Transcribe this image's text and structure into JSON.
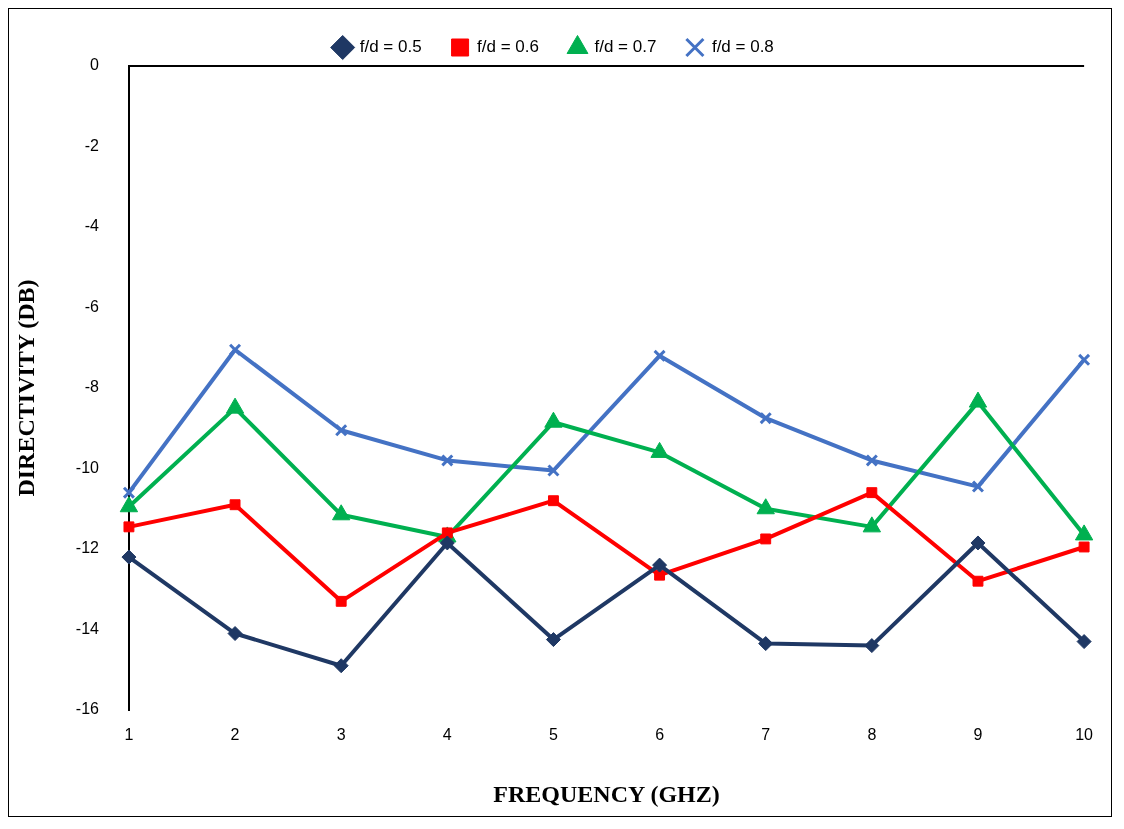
{
  "chart_data": {
    "type": "line",
    "xlabel": "FREQUENCY (GHZ)",
    "ylabel": "DIRECTIVITY (DB)",
    "categories": [
      "1",
      "2",
      "3",
      "4",
      "5",
      "6",
      "7",
      "8",
      "9",
      "10"
    ],
    "ylim": [
      -16,
      0
    ],
    "yticks": [
      -16,
      -14,
      -12,
      -10,
      -8,
      -6,
      -4,
      -2,
      0
    ],
    "grid": false,
    "legend": "top",
    "line_style": "solid",
    "series": [
      {
        "name": "f/d = 0.5",
        "color": "#1f3864",
        "marker": "diamond",
        "values": [
          -12.2,
          -14.1,
          -14.9,
          -11.85,
          -14.25,
          -12.4,
          -14.35,
          -14.4,
          -11.85,
          -14.3
        ]
      },
      {
        "name": "f/d = 0.6",
        "color": "#ff0000",
        "marker": "square",
        "values": [
          -11.45,
          -10.9,
          -13.3,
          -11.6,
          -10.8,
          -12.65,
          -11.75,
          -10.6,
          -12.8,
          -11.95
        ]
      },
      {
        "name": "f/d = 0.7",
        "color": "#00b050",
        "marker": "triangle",
        "values": [
          -10.95,
          -8.5,
          -11.15,
          -11.7,
          -8.85,
          -9.6,
          -11.0,
          -11.45,
          -8.35,
          -11.65
        ]
      },
      {
        "name": "f/d = 0.8",
        "color": "#4472c4",
        "marker": "cross",
        "values": [
          -10.6,
          -7.05,
          -9.05,
          -9.8,
          -10.05,
          -7.2,
          -8.75,
          -9.8,
          -10.45,
          -7.3
        ]
      }
    ]
  }
}
